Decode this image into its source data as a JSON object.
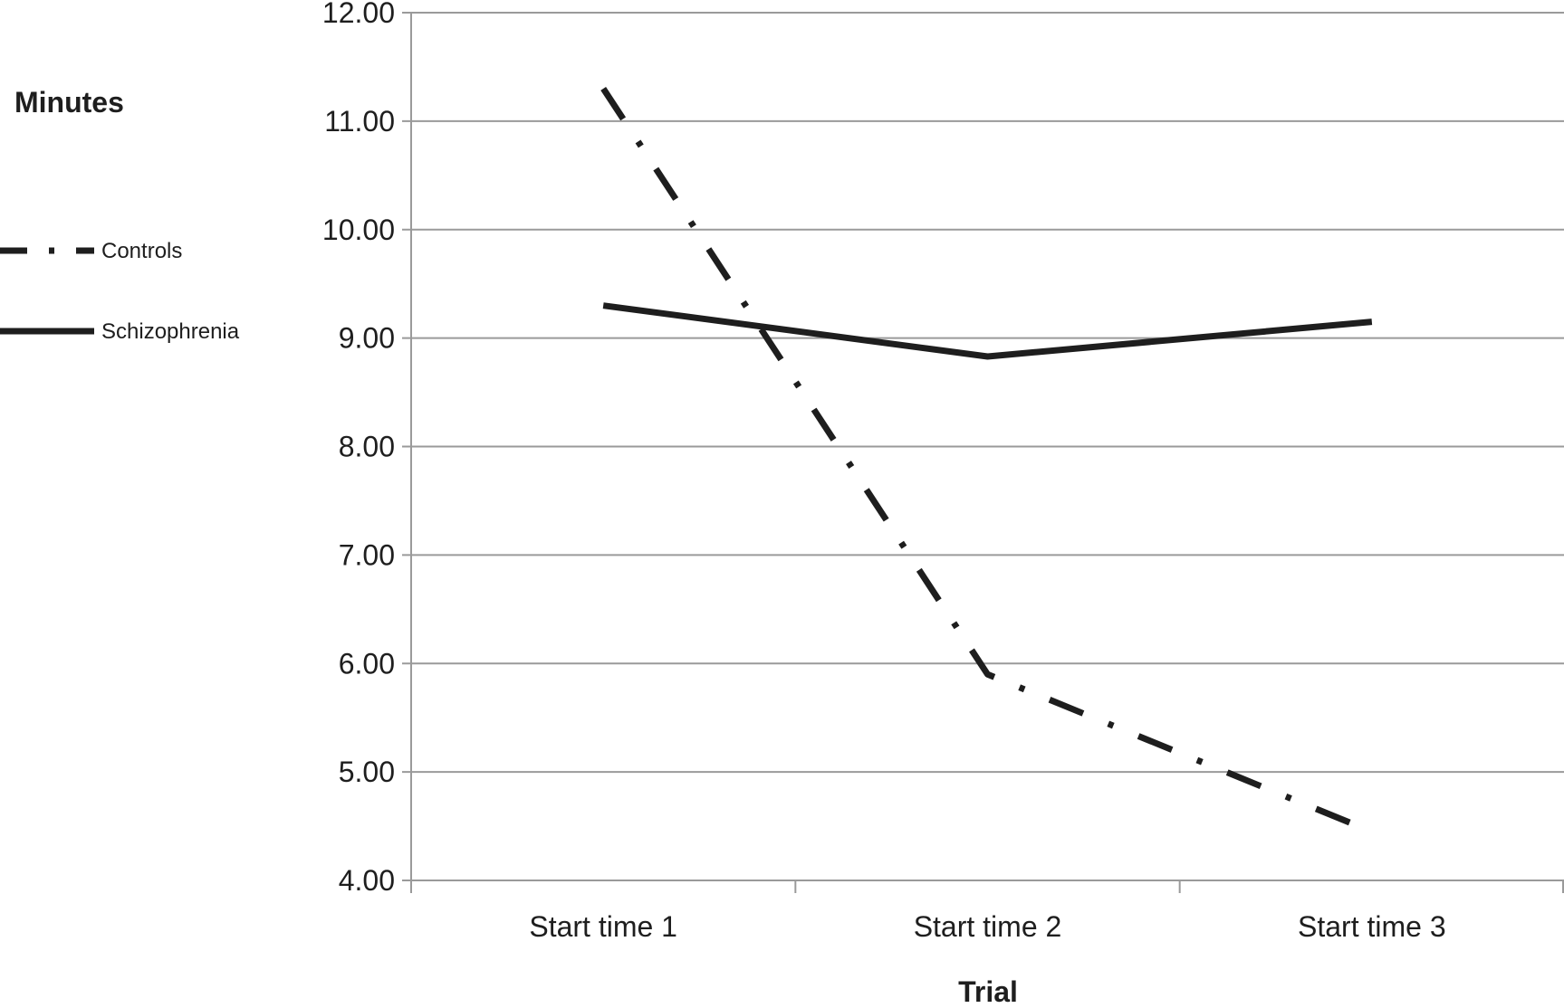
{
  "chart_data": {
    "type": "line",
    "title": "",
    "xlabel": "Trial",
    "ylabel": "Minutes",
    "categories": [
      "Start time 1",
      "Start time 2",
      "Start time 3"
    ],
    "series": [
      {
        "name": "Controls",
        "values": [
          11.3,
          5.9,
          4.45
        ],
        "style": "dash-dot",
        "color": "#1e1e1e"
      },
      {
        "name": "Schizophrenia",
        "values": [
          9.3,
          8.83,
          9.15
        ],
        "style": "solid",
        "color": "#1e1e1e"
      }
    ],
    "ylim": [
      4,
      12
    ],
    "yticks": [
      "4.00",
      "5.00",
      "6.00",
      "7.00",
      "8.00",
      "9.00",
      "10.00",
      "11.00",
      "12.00"
    ],
    "grid": true,
    "legend_position": "left",
    "colors": {
      "line": "#1e1e1e",
      "grid": "#9a9a9a",
      "text": "#1e1e1e"
    }
  }
}
